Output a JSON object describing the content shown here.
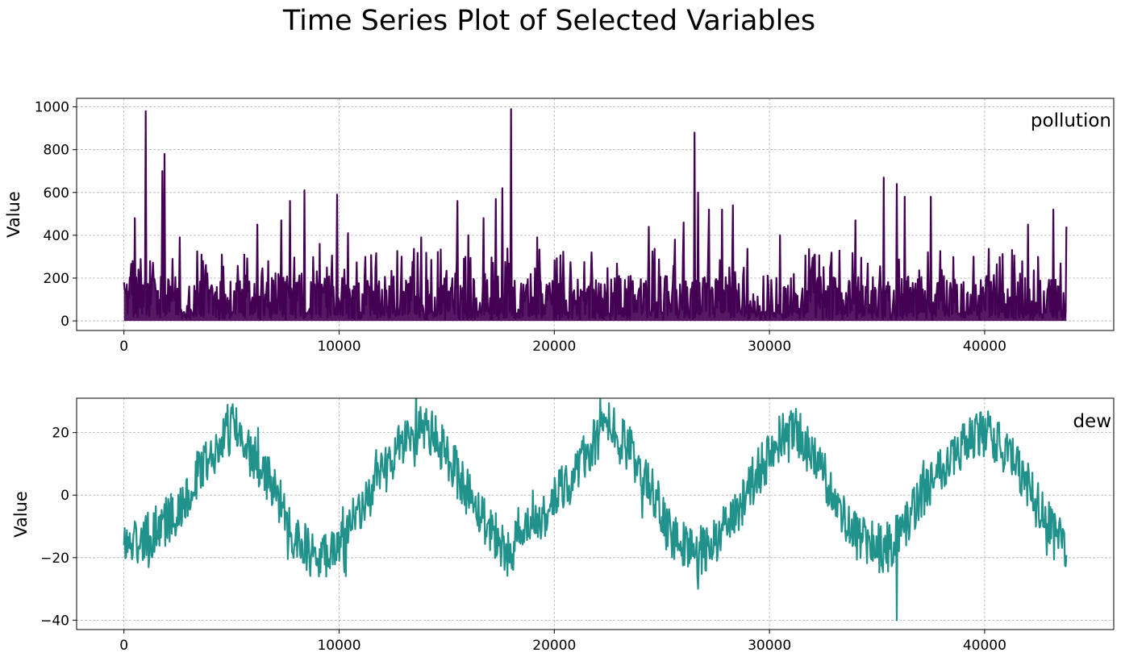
{
  "title": "Time Series Plot of Selected Variables",
  "chart_data": [
    {
      "type": "line",
      "series": [
        {
          "name": "pollution",
          "color": "#440154",
          "x_extent": [
            0,
            43800
          ],
          "summary": "hourly values, dense spikes; baseline near 0-200",
          "peaks": [
            {
              "x": 400,
              "y": 280
            },
            {
              "x": 500,
              "y": 480
            },
            {
              "x": 1000,
              "y": 980
            },
            {
              "x": 1800,
              "y": 700
            },
            {
              "x": 1900,
              "y": 780
            },
            {
              "x": 2600,
              "y": 390
            },
            {
              "x": 3600,
              "y": 310
            },
            {
              "x": 5600,
              "y": 310
            },
            {
              "x": 6200,
              "y": 450
            },
            {
              "x": 7300,
              "y": 470
            },
            {
              "x": 7700,
              "y": 560
            },
            {
              "x": 8400,
              "y": 610
            },
            {
              "x": 9100,
              "y": 360
            },
            {
              "x": 9900,
              "y": 590
            },
            {
              "x": 10400,
              "y": 410
            },
            {
              "x": 12900,
              "y": 300
            },
            {
              "x": 13800,
              "y": 390
            },
            {
              "x": 15500,
              "y": 560
            },
            {
              "x": 16000,
              "y": 400
            },
            {
              "x": 16700,
              "y": 480
            },
            {
              "x": 17300,
              "y": 570
            },
            {
              "x": 17600,
              "y": 620
            },
            {
              "x": 18000,
              "y": 990
            },
            {
              "x": 19200,
              "y": 390
            },
            {
              "x": 24400,
              "y": 440
            },
            {
              "x": 25600,
              "y": 380
            },
            {
              "x": 26000,
              "y": 460
            },
            {
              "x": 26500,
              "y": 880
            },
            {
              "x": 26700,
              "y": 600
            },
            {
              "x": 27200,
              "y": 520
            },
            {
              "x": 27800,
              "y": 520
            },
            {
              "x": 28300,
              "y": 540
            },
            {
              "x": 30500,
              "y": 400
            },
            {
              "x": 34000,
              "y": 470
            },
            {
              "x": 35300,
              "y": 670
            },
            {
              "x": 35900,
              "y": 640
            },
            {
              "x": 36300,
              "y": 580
            },
            {
              "x": 37500,
              "y": 580
            },
            {
              "x": 39500,
              "y": 300
            },
            {
              "x": 42000,
              "y": 450
            },
            {
              "x": 43200,
              "y": 520
            },
            {
              "x": 43800,
              "y": 440
            }
          ]
        }
      ],
      "xlim": [
        -2200,
        46000
      ],
      "ylim": [
        -45,
        1040
      ],
      "xticks": [
        0,
        10000,
        20000,
        30000,
        40000
      ],
      "xtick_labels": [
        "0",
        "10000",
        "20000",
        "30000",
        "40000"
      ],
      "yticks": [
        0,
        200,
        400,
        600,
        800,
        1000
      ],
      "ytick_labels": [
        "0",
        "200",
        "400",
        "600",
        "800",
        "1000"
      ],
      "ylabel": "Value",
      "xlabel": "",
      "label": "pollution",
      "grid": true
    },
    {
      "type": "line",
      "series": [
        {
          "name": "dew",
          "color": "#21918c",
          "x_extent": [
            0,
            43800
          ],
          "summary": "seasonal oscillation, roughly annual period of 8760 samples, amplitude about 20 with noise",
          "trend": [
            {
              "x": 0,
              "y": -16
            },
            {
              "x": 1000,
              "y": -14
            },
            {
              "x": 2500,
              "y": -5
            },
            {
              "x": 3500,
              "y": 8
            },
            {
              "x": 4500,
              "y": 17
            },
            {
              "x": 5100,
              "y": 22
            },
            {
              "x": 6000,
              "y": 12
            },
            {
              "x": 7000,
              "y": 2
            },
            {
              "x": 8000,
              "y": -14
            },
            {
              "x": 9000,
              "y": -21
            },
            {
              "x": 10000,
              "y": -14
            },
            {
              "x": 11000,
              "y": -6
            },
            {
              "x": 12000,
              "y": 8
            },
            {
              "x": 13000,
              "y": 17
            },
            {
              "x": 13800,
              "y": 23
            },
            {
              "x": 14800,
              "y": 15
            },
            {
              "x": 15800,
              "y": 3
            },
            {
              "x": 16800,
              "y": -8
            },
            {
              "x": 17800,
              "y": -18
            },
            {
              "x": 18800,
              "y": -12
            },
            {
              "x": 19800,
              "y": -4
            },
            {
              "x": 20800,
              "y": 6
            },
            {
              "x": 21800,
              "y": 16
            },
            {
              "x": 22600,
              "y": 23
            },
            {
              "x": 23500,
              "y": 14
            },
            {
              "x": 24500,
              "y": 3
            },
            {
              "x": 25500,
              "y": -12
            },
            {
              "x": 26500,
              "y": -19
            },
            {
              "x": 27500,
              "y": -15
            },
            {
              "x": 28500,
              "y": -5
            },
            {
              "x": 29500,
              "y": 8
            },
            {
              "x": 30500,
              "y": 18
            },
            {
              "x": 31300,
              "y": 20
            },
            {
              "x": 32300,
              "y": 10
            },
            {
              "x": 33300,
              "y": -6
            },
            {
              "x": 34300,
              "y": -14
            },
            {
              "x": 35300,
              "y": -18
            },
            {
              "x": 36300,
              "y": -10
            },
            {
              "x": 37300,
              "y": 3
            },
            {
              "x": 38300,
              "y": 12
            },
            {
              "x": 39300,
              "y": 18
            },
            {
              "x": 40100,
              "y": 20
            },
            {
              "x": 41200,
              "y": 12
            },
            {
              "x": 42200,
              "y": 0
            },
            {
              "x": 43000,
              "y": -10
            },
            {
              "x": 43800,
              "y": -18
            }
          ],
          "min": {
            "x": 35900,
            "y": -40
          },
          "max": {
            "x": 5000,
            "y": 28
          }
        }
      ],
      "xlim": [
        -2200,
        46000
      ],
      "ylim": [
        -43,
        31
      ],
      "xticks": [
        0,
        10000,
        20000,
        30000,
        40000
      ],
      "xtick_labels": [
        "0",
        "10000",
        "20000",
        "30000",
        "40000"
      ],
      "yticks": [
        -40,
        -20,
        0,
        20
      ],
      "ytick_labels": [
        "−40",
        "−20",
        "0",
        "20"
      ],
      "ylabel": "Value",
      "xlabel": "",
      "label": "dew",
      "grid": true
    }
  ]
}
